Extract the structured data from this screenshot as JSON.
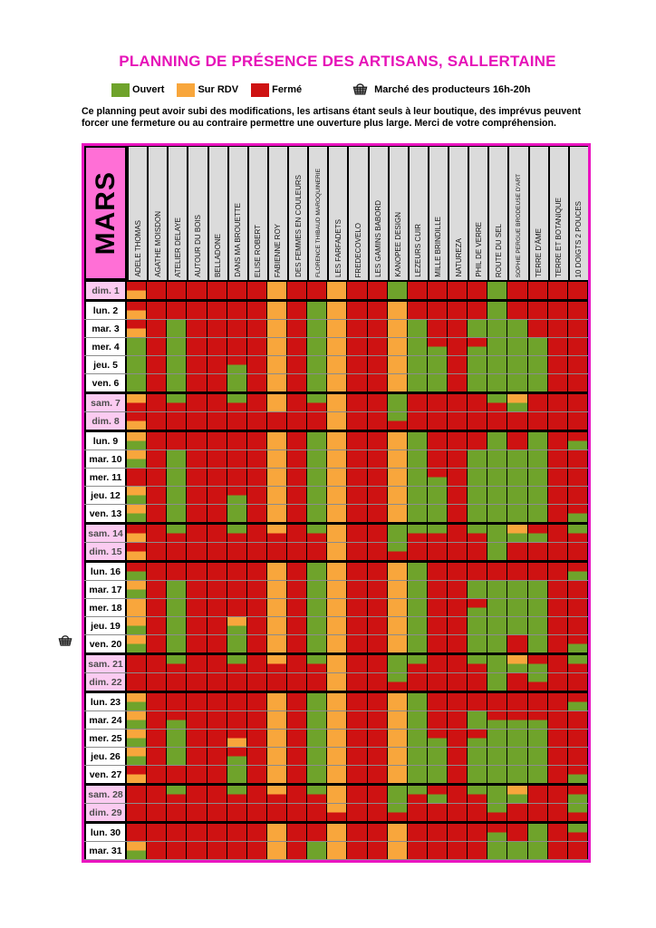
{
  "title": "PLANNING DE PRÉSENCE DES ARTISANS, SALLERTAINE",
  "title_color": "#e613b8",
  "legend": {
    "items": [
      {
        "code": "G",
        "label": "Ouvert",
        "color": "#6fa32b"
      },
      {
        "code": "O",
        "label": "Sur RDV",
        "color": "#f8a63c"
      },
      {
        "code": "R",
        "label": "Fermé",
        "color": "#ce1212"
      }
    ],
    "market_label": "Marché des producteurs 16h-20h"
  },
  "disclaimer": "Ce planning peut avoir subi des modifications, les artisans étant seuls à leur boutique, des imprévus peuvent forcer une fermeture ou au contraire permettre une ouverture plus large. Merci de votre compréhension.",
  "month_label": "MARS",
  "colors": {
    "G": "#6fa32b",
    "O": "#f8a63c",
    "R": "#ce1212",
    "month_bg": "#ff6fd6",
    "weekend_label_bg": "#fbcbf1",
    "header_bg": "#dbdbdb",
    "frame": "#ea14c0"
  },
  "chart_data": {
    "type": "heatmap",
    "title": "PLANNING DE PRÉSENCE DES ARTISANS, SALLERTAINE",
    "legend_meaning": {
      "G": "Ouvert",
      "O": "Sur RDV",
      "R": "Fermé",
      "two_letter_codes": "split day: first=top half, second=bottom half"
    },
    "artisans": [
      "ADELE THOMAS",
      "AGATHE MOISDON",
      "ATELIER DELAYE",
      "AUTOUR DU BOIS",
      "BELLADONE",
      "DANS MA BROUETTE",
      "ELISE ROBERT",
      "FABIENNE ROY",
      "DES FEMMES EN COULEURS",
      "FLORENCE THIBAUD MAROQUINERIE",
      "LES FARFADETS",
      "FREDECOVELO",
      "LES GAMINS BABORD",
      "KANOPEE DESIGN",
      "LEZEURS CUIR",
      "MILLE BRINDILLE",
      "NATUREZA",
      "PHIL DE VERRE",
      "ROUTE DU SEL",
      "SOPHIE PERGUE BRODEUSE D'ART",
      "TERRE D'ÂME",
      "TERRE ET BOTANIQUE",
      "10 DOIGTS 2 POUCES"
    ],
    "days": [
      {
        "label": "dim. 1",
        "weekend": true,
        "group_end": true,
        "market": false
      },
      {
        "label": "lun. 2",
        "weekend": false,
        "group_end": false,
        "market": false
      },
      {
        "label": "mar. 3",
        "weekend": false,
        "group_end": false,
        "market": false
      },
      {
        "label": "mer. 4",
        "weekend": false,
        "group_end": false,
        "market": false
      },
      {
        "label": "jeu. 5",
        "weekend": false,
        "group_end": false,
        "market": false
      },
      {
        "label": "ven. 6",
        "weekend": false,
        "group_end": true,
        "market": false
      },
      {
        "label": "sam. 7",
        "weekend": true,
        "group_end": false,
        "market": false
      },
      {
        "label": "dim. 8",
        "weekend": true,
        "group_end": true,
        "market": false
      },
      {
        "label": "lun. 9",
        "weekend": false,
        "group_end": false,
        "market": false
      },
      {
        "label": "mar. 10",
        "weekend": false,
        "group_end": false,
        "market": false
      },
      {
        "label": "mer. 11",
        "weekend": false,
        "group_end": false,
        "market": false
      },
      {
        "label": "jeu. 12",
        "weekend": false,
        "group_end": false,
        "market": false
      },
      {
        "label": "ven. 13",
        "weekend": false,
        "group_end": true,
        "market": false
      },
      {
        "label": "sam. 14",
        "weekend": true,
        "group_end": false,
        "market": false
      },
      {
        "label": "dim. 15",
        "weekend": true,
        "group_end": true,
        "market": false
      },
      {
        "label": "lun. 16",
        "weekend": false,
        "group_end": false,
        "market": false
      },
      {
        "label": "mar. 17",
        "weekend": false,
        "group_end": false,
        "market": false
      },
      {
        "label": "mer. 18",
        "weekend": false,
        "group_end": false,
        "market": false
      },
      {
        "label": "jeu. 19",
        "weekend": false,
        "group_end": false,
        "market": false
      },
      {
        "label": "ven. 20",
        "weekend": false,
        "group_end": true,
        "market": true
      },
      {
        "label": "sam. 21",
        "weekend": true,
        "group_end": false,
        "market": false
      },
      {
        "label": "dim. 22",
        "weekend": true,
        "group_end": true,
        "market": false
      },
      {
        "label": "lun. 23",
        "weekend": false,
        "group_end": false,
        "market": false
      },
      {
        "label": "mar. 24",
        "weekend": false,
        "group_end": false,
        "market": false
      },
      {
        "label": "mer. 25",
        "weekend": false,
        "group_end": false,
        "market": false
      },
      {
        "label": "jeu. 26",
        "weekend": false,
        "group_end": false,
        "market": false
      },
      {
        "label": "ven. 27",
        "weekend": false,
        "group_end": true,
        "market": false
      },
      {
        "label": "sam. 28",
        "weekend": true,
        "group_end": false,
        "market": false
      },
      {
        "label": "dim. 29",
        "weekend": true,
        "group_end": true,
        "market": false
      },
      {
        "label": "lun. 30",
        "weekend": false,
        "group_end": false,
        "market": false
      },
      {
        "label": "mar. 31",
        "weekend": false,
        "group_end": false,
        "market": false
      }
    ],
    "cells": [
      [
        "RO",
        "R",
        "R",
        "R",
        "R",
        "R",
        "R",
        "O",
        "R",
        "R",
        "O",
        "R",
        "R",
        "G",
        "R",
        "R",
        "R",
        "R",
        "G",
        "R",
        "R",
        "R",
        "R"
      ],
      [
        "RO",
        "R",
        "R",
        "R",
        "R",
        "R",
        "R",
        "O",
        "R",
        "G",
        "O",
        "R",
        "R",
        "O",
        "R",
        "R",
        "R",
        "R",
        "G",
        "R",
        "R",
        "R",
        "R"
      ],
      [
        "RO",
        "R",
        "G",
        "R",
        "R",
        "R",
        "R",
        "O",
        "R",
        "G",
        "O",
        "R",
        "R",
        "O",
        "G",
        "R",
        "R",
        "G",
        "G",
        "G",
        "R",
        "R",
        "R"
      ],
      [
        "G",
        "R",
        "G",
        "R",
        "R",
        "R",
        "R",
        "O",
        "R",
        "G",
        "O",
        "R",
        "R",
        "O",
        "G",
        "RG",
        "R",
        "RG",
        "G",
        "G",
        "G",
        "R",
        "R"
      ],
      [
        "G",
        "R",
        "G",
        "R",
        "R",
        "RG",
        "R",
        "O",
        "R",
        "G",
        "O",
        "R",
        "R",
        "O",
        "G",
        "G",
        "R",
        "G",
        "G",
        "G",
        "G",
        "R",
        "R"
      ],
      [
        "G",
        "R",
        "G",
        "R",
        "R",
        "G",
        "R",
        "O",
        "R",
        "G",
        "O",
        "R",
        "R",
        "O",
        "G",
        "G",
        "R",
        "G",
        "G",
        "G",
        "G",
        "R",
        "R"
      ],
      [
        "OR",
        "R",
        "GR",
        "R",
        "R",
        "GR",
        "R",
        "O",
        "R",
        "GR",
        "O",
        "R",
        "R",
        "G",
        "R",
        "R",
        "R",
        "R",
        "GR",
        "OG",
        "R",
        "R",
        "R"
      ],
      [
        "RO",
        "R",
        "R",
        "R",
        "R",
        "R",
        "R",
        "R",
        "R",
        "R",
        "O",
        "R",
        "R",
        "GR",
        "R",
        "R",
        "R",
        "R",
        "R",
        "R",
        "R",
        "R",
        "R"
      ],
      [
        "OG",
        "R",
        "R",
        "R",
        "R",
        "R",
        "R",
        "O",
        "R",
        "G",
        "O",
        "R",
        "R",
        "O",
        "G",
        "R",
        "R",
        "R",
        "G",
        "R",
        "G",
        "R",
        "RG"
      ],
      [
        "OG",
        "R",
        "G",
        "R",
        "R",
        "R",
        "R",
        "O",
        "R",
        "G",
        "O",
        "R",
        "R",
        "O",
        "G",
        "R",
        "R",
        "G",
        "G",
        "G",
        "G",
        "R",
        "R"
      ],
      [
        "R",
        "R",
        "G",
        "R",
        "R",
        "R",
        "R",
        "O",
        "R",
        "G",
        "O",
        "R",
        "R",
        "O",
        "G",
        "RG",
        "R",
        "G",
        "G",
        "G",
        "G",
        "R",
        "R"
      ],
      [
        "OG",
        "R",
        "G",
        "R",
        "R",
        "RG",
        "R",
        "O",
        "R",
        "G",
        "O",
        "R",
        "R",
        "O",
        "G",
        "G",
        "R",
        "G",
        "G",
        "G",
        "G",
        "R",
        "R"
      ],
      [
        "OG",
        "R",
        "G",
        "R",
        "R",
        "G",
        "R",
        "O",
        "R",
        "G",
        "O",
        "R",
        "R",
        "O",
        "G",
        "G",
        "R",
        "G",
        "G",
        "G",
        "G",
        "R",
        "RG"
      ],
      [
        "RO",
        "R",
        "GR",
        "R",
        "R",
        "GR",
        "R",
        "OR",
        "R",
        "GR",
        "O",
        "R",
        "R",
        "G",
        "GR",
        "GR",
        "R",
        "GR",
        "G",
        "OG",
        "RG",
        "R",
        "GR"
      ],
      [
        "RO",
        "R",
        "R",
        "R",
        "R",
        "R",
        "R",
        "R",
        "R",
        "R",
        "O",
        "R",
        "R",
        "GR",
        "R",
        "R",
        "R",
        "R",
        "G",
        "R",
        "R",
        "R",
        "R"
      ],
      [
        "RG",
        "R",
        "R",
        "R",
        "R",
        "R",
        "R",
        "O",
        "R",
        "G",
        "O",
        "R",
        "R",
        "O",
        "G",
        "R",
        "R",
        "R",
        "R",
        "R",
        "R",
        "R",
        "RG"
      ],
      [
        "OG",
        "R",
        "G",
        "R",
        "R",
        "R",
        "R",
        "O",
        "R",
        "G",
        "O",
        "R",
        "R",
        "O",
        "G",
        "R",
        "R",
        "G",
        "G",
        "G",
        "G",
        "R",
        "R"
      ],
      [
        "O",
        "R",
        "G",
        "R",
        "R",
        "R",
        "R",
        "O",
        "R",
        "G",
        "O",
        "R",
        "R",
        "O",
        "G",
        "R",
        "R",
        "RG",
        "G",
        "G",
        "G",
        "R",
        "R"
      ],
      [
        "OG",
        "R",
        "G",
        "R",
        "R",
        "OG",
        "R",
        "O",
        "R",
        "G",
        "O",
        "R",
        "R",
        "O",
        "G",
        "R",
        "R",
        "G",
        "G",
        "G",
        "G",
        "R",
        "R"
      ],
      [
        "OG",
        "R",
        "G",
        "R",
        "R",
        "G",
        "R",
        "O",
        "R",
        "G",
        "O",
        "R",
        "R",
        "O",
        "G",
        "R",
        "R",
        "G",
        "G",
        "R",
        "G",
        "R",
        "RG"
      ],
      [
        "R",
        "R",
        "GR",
        "R",
        "R",
        "GR",
        "R",
        "OR",
        "R",
        "GR",
        "O",
        "R",
        "R",
        "G",
        "GR",
        "R",
        "R",
        "GR",
        "G",
        "OG",
        "RG",
        "R",
        "GR"
      ],
      [
        "R",
        "R",
        "R",
        "R",
        "R",
        "R",
        "R",
        "R",
        "R",
        "R",
        "O",
        "R",
        "R",
        "GR",
        "R",
        "R",
        "R",
        "R",
        "G",
        "R",
        "GR",
        "R",
        "R"
      ],
      [
        "OG",
        "R",
        "R",
        "R",
        "R",
        "R",
        "R",
        "O",
        "R",
        "G",
        "O",
        "R",
        "R",
        "O",
        "G",
        "R",
        "R",
        "R",
        "R",
        "R",
        "R",
        "R",
        "RG"
      ],
      [
        "OG",
        "R",
        "RG",
        "R",
        "R",
        "R",
        "R",
        "O",
        "R",
        "G",
        "O",
        "R",
        "R",
        "O",
        "G",
        "R",
        "R",
        "G",
        "RG",
        "RG",
        "RG",
        "R",
        "R"
      ],
      [
        "OG",
        "R",
        "G",
        "R",
        "R",
        "RO",
        "R",
        "O",
        "R",
        "G",
        "O",
        "R",
        "R",
        "O",
        "G",
        "RG",
        "R",
        "RG",
        "G",
        "G",
        "G",
        "R",
        "R"
      ],
      [
        "OG",
        "R",
        "G",
        "R",
        "R",
        "RG",
        "R",
        "O",
        "R",
        "G",
        "O",
        "R",
        "R",
        "O",
        "G",
        "G",
        "R",
        "G",
        "G",
        "G",
        "G",
        "R",
        "R"
      ],
      [
        "RO",
        "R",
        "R",
        "R",
        "R",
        "G",
        "R",
        "O",
        "R",
        "G",
        "O",
        "R",
        "R",
        "O",
        "G",
        "G",
        "R",
        "G",
        "G",
        "G",
        "G",
        "R",
        "RG"
      ],
      [
        "R",
        "R",
        "GR",
        "R",
        "R",
        "GR",
        "R",
        "OR",
        "R",
        "GR",
        "O",
        "R",
        "R",
        "G",
        "GR",
        "RG",
        "R",
        "GR",
        "G",
        "OG",
        "R",
        "R",
        "RG"
      ],
      [
        "R",
        "R",
        "R",
        "R",
        "R",
        "R",
        "R",
        "R",
        "R",
        "R",
        "OR",
        "R",
        "R",
        "GR",
        "R",
        "R",
        "R",
        "R",
        "GR",
        "R",
        "R",
        "R",
        "GR"
      ],
      [
        "R",
        "R",
        "R",
        "R",
        "R",
        "R",
        "R",
        "O",
        "R",
        "R",
        "O",
        "R",
        "R",
        "O",
        "R",
        "R",
        "R",
        "R",
        "RG",
        "R",
        "G",
        "R",
        "GR"
      ],
      [
        "OG",
        "R",
        "R",
        "R",
        "R",
        "R",
        "R",
        "O",
        "R",
        "G",
        "O",
        "R",
        "R",
        "O",
        "R",
        "R",
        "R",
        "R",
        "G",
        "G",
        "G",
        "R",
        "R"
      ]
    ]
  }
}
